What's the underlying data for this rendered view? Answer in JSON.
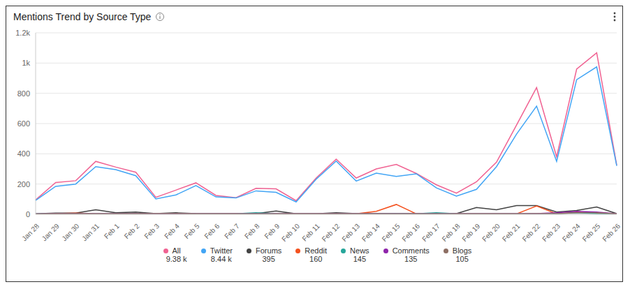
{
  "chart_data": {
    "type": "line",
    "title": "Mentions Trend by Source Type",
    "categories": [
      "Jan 28",
      "Jan 29",
      "Jan 30",
      "Jan 31",
      "Feb 1",
      "Feb 2",
      "Feb 3",
      "Feb 4",
      "Feb 5",
      "Feb 6",
      "Feb 7",
      "Feb 8",
      "Feb 9",
      "Feb 10",
      "Feb 11",
      "Feb 12",
      "Feb 13",
      "Feb 14",
      "Feb 15",
      "Feb 16",
      "Feb 17",
      "Feb 18",
      "Feb 19",
      "Feb 20",
      "Feb 21",
      "Feb 22",
      "Feb 23",
      "Feb 24",
      "Feb 25",
      "Feb 26"
    ],
    "series": [
      {
        "name": "All",
        "color": "#f06292",
        "total": {
          "value": 9380,
          "label": "9.38 k"
        },
        "values": [
          95,
          210,
          222,
          350,
          312,
          278,
          112,
          160,
          208,
          125,
          110,
          172,
          168,
          90,
          240,
          365,
          240,
          300,
          330,
          270,
          195,
          140,
          215,
          345,
          590,
          838,
          380,
          960,
          1068,
          325
        ]
      },
      {
        "name": "Twitter",
        "color": "#42a5f5",
        "total": {
          "value": 8440,
          "label": "8.44 k"
        },
        "values": [
          92,
          185,
          200,
          315,
          295,
          255,
          102,
          128,
          190,
          115,
          108,
          155,
          145,
          82,
          232,
          352,
          220,
          272,
          250,
          268,
          175,
          120,
          165,
          315,
          530,
          715,
          350,
          890,
          975,
          320
        ]
      },
      {
        "name": "Forums",
        "color": "#424242",
        "total": 395,
        "values": [
          3,
          8,
          8,
          30,
          10,
          15,
          5,
          10,
          5,
          3,
          3,
          5,
          22,
          3,
          3,
          10,
          5,
          5,
          5,
          3,
          5,
          5,
          45,
          30,
          58,
          58,
          15,
          25,
          48,
          5
        ]
      },
      {
        "name": "Reddit",
        "color": "#f4511e",
        "total": 160,
        "values": [
          0,
          5,
          8,
          3,
          3,
          5,
          3,
          3,
          3,
          3,
          3,
          3,
          3,
          3,
          3,
          3,
          3,
          20,
          65,
          3,
          3,
          3,
          3,
          3,
          3,
          55,
          3,
          15,
          8,
          3
        ]
      },
      {
        "name": "News",
        "color": "#26a69a",
        "total": 145,
        "values": [
          2,
          3,
          3,
          3,
          3,
          3,
          3,
          3,
          3,
          3,
          3,
          10,
          3,
          3,
          3,
          3,
          3,
          3,
          5,
          3,
          10,
          3,
          3,
          3,
          3,
          5,
          5,
          10,
          5,
          3
        ]
      },
      {
        "name": "Comments",
        "color": "#8e24aa",
        "total": 135,
        "values": [
          2,
          3,
          3,
          3,
          3,
          3,
          3,
          3,
          3,
          3,
          3,
          3,
          3,
          3,
          3,
          3,
          3,
          3,
          3,
          3,
          3,
          3,
          3,
          3,
          3,
          5,
          10,
          20,
          15,
          3
        ]
      },
      {
        "name": "Blogs",
        "color": "#8d6e63",
        "total": 105,
        "values": [
          2,
          3,
          3,
          3,
          3,
          3,
          5,
          5,
          3,
          3,
          3,
          3,
          3,
          3,
          3,
          3,
          3,
          3,
          3,
          3,
          3,
          3,
          3,
          3,
          3,
          5,
          5,
          10,
          10,
          3
        ]
      }
    ],
    "ylim": [
      0,
      1200
    ],
    "yticks": [
      0,
      200,
      400,
      600,
      800,
      {
        "value": 1000,
        "label": "1k"
      },
      {
        "value": 1200,
        "label": "1.2k"
      }
    ],
    "grid": true
  }
}
